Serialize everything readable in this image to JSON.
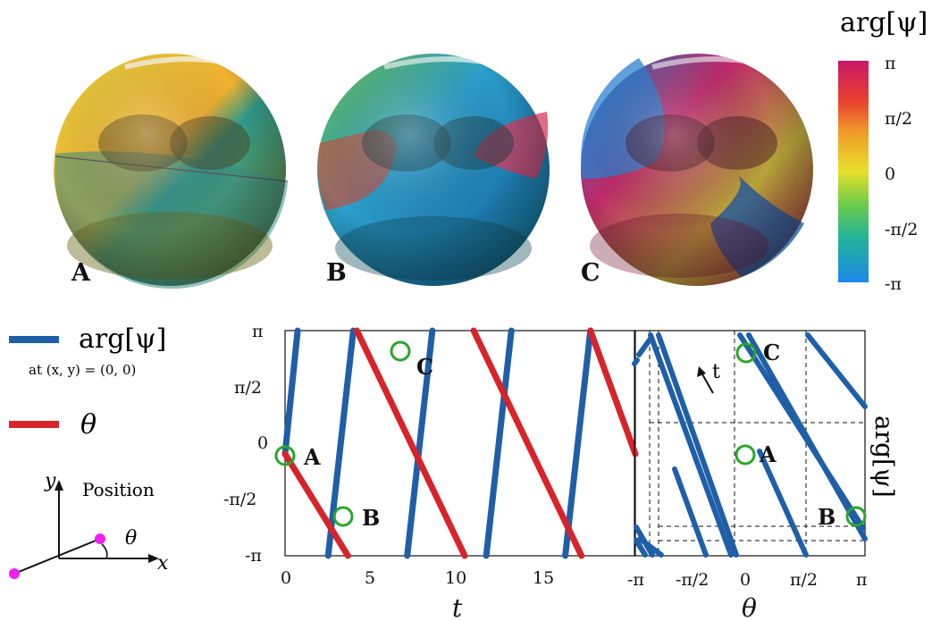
{
  "colorbar": {
    "title": "arg[ψ]",
    "ticks": [
      "π",
      "π/2",
      "0",
      "-π/2",
      "-π"
    ]
  },
  "spheres": [
    {
      "label": "A"
    },
    {
      "label": "B"
    },
    {
      "label": "C"
    }
  ],
  "legend": {
    "blue_label": "arg[ψ]",
    "blue_sublabel": "at (x, y) = (0, 0)",
    "red_label": "θ",
    "blue_color": "#1f5fa8",
    "red_color": "#d8232a"
  },
  "position_diagram": {
    "title": "Position",
    "x_axis": "x",
    "y_axis": "y",
    "angle": "θ",
    "dot_color": "#ee22ee"
  },
  "left_plot": {
    "xlabel": "t",
    "x_ticks": [
      "0",
      "5",
      "10",
      "15"
    ],
    "y_ticks": [
      "π",
      "π/2",
      "0",
      "-π/2",
      "-π"
    ],
    "points": [
      {
        "label": "A",
        "t": 0,
        "value": -0.3
      },
      {
        "label": "B",
        "t": 3.3,
        "value": -2.5
      },
      {
        "label": "C",
        "t": 6.8,
        "value": 2.6
      }
    ]
  },
  "right_plot": {
    "xlabel": "θ",
    "ylabel": "arg[ψ]",
    "x_ticks": [
      "-π",
      "-π/2",
      "0",
      "π/2",
      "π"
    ],
    "arrow_label": "t",
    "points": [
      {
        "label": "C"
      },
      {
        "label": "A"
      },
      {
        "label": "B"
      }
    ]
  },
  "chart_data": {
    "type": "line",
    "xlabel": "t",
    "x_range": [
      0,
      20
    ],
    "y_range": [
      -3.1416,
      3.1416
    ],
    "series": [
      {
        "name": "arg[ψ]",
        "color": "#1f5fa8",
        "segments": [
          [
            [
              2.4,
              -3.14
            ],
            [
              3.8,
              3.14
            ]
          ],
          [
            [
              6.8,
              -3.14
            ],
            [
              8.2,
              3.14
            ]
          ],
          [
            [
              11.2,
              -3.14
            ],
            [
              12.6,
              3.14
            ]
          ],
          [
            [
              15.6,
              -3.14
            ],
            [
              17.0,
              3.14
            ]
          ],
          [
            [
              0,
              -0.3
            ],
            [
              0.7,
              3.14
            ]
          ]
        ]
      },
      {
        "name": "θ",
        "color": "#d8232a",
        "segments": [
          [
            [
              0,
              -0.3
            ],
            [
              3.5,
              -3.14
            ]
          ],
          [
            [
              4.0,
              3.14
            ],
            [
              10.0,
              -3.14
            ]
          ],
          [
            [
              10.5,
              3.14
            ],
            [
              16.5,
              -3.14
            ]
          ],
          [
            [
              17.0,
              3.14
            ],
            [
              20,
              -0.3
            ]
          ]
        ]
      }
    ]
  }
}
